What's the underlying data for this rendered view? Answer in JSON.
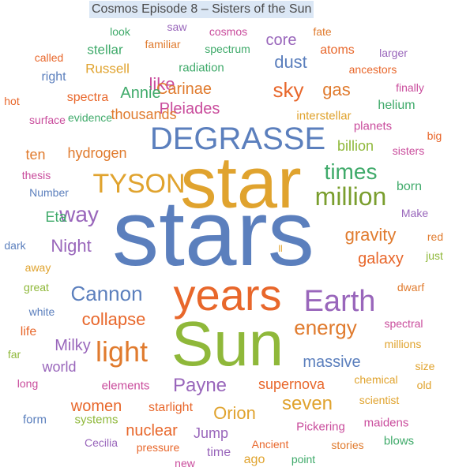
{
  "title": "Cosmos Episode 8 – Sisters of the Sun",
  "words": [
    {
      "text": "stars",
      "color": "#5b7fbd"
    },
    {
      "text": "star",
      "color": "#e0a32e"
    },
    {
      "text": "Sun",
      "color": "#8fb83a"
    },
    {
      "text": "years",
      "color": "#e8672b"
    },
    {
      "text": "DEGRASSE",
      "color": "#5b7fbd"
    },
    {
      "text": "TYSON",
      "color": "#e0a32e"
    },
    {
      "text": "Earth",
      "color": "#9966bb"
    },
    {
      "text": "light",
      "color": "#e07b2e"
    },
    {
      "text": "million",
      "color": "#7a9e2e"
    },
    {
      "text": "way",
      "color": "#9966bb"
    },
    {
      "text": "times",
      "color": "#3faa6a"
    },
    {
      "text": "Cannon",
      "color": "#5b7fbd"
    },
    {
      "text": "energy",
      "color": "#e07b2e"
    },
    {
      "text": "Payne",
      "color": "#9966bb"
    },
    {
      "text": "gravity",
      "color": "#e07b2e"
    },
    {
      "text": "galaxy",
      "color": "#e8672b"
    },
    {
      "text": "seven",
      "color": "#e0a32e"
    },
    {
      "text": "Orion",
      "color": "#e0a32e"
    },
    {
      "text": "like",
      "color": "#c94c9c"
    },
    {
      "text": "sky",
      "color": "#e8672b"
    },
    {
      "text": "gas",
      "color": "#e07b2e"
    },
    {
      "text": "Night",
      "color": "#9966bb"
    },
    {
      "text": "collapse",
      "color": "#e8672b"
    },
    {
      "text": "massive",
      "color": "#5b7fbd"
    },
    {
      "text": "Pleiades",
      "color": "#c94c9c"
    },
    {
      "text": "supernova",
      "color": "#e8672b"
    },
    {
      "text": "Carinae",
      "color": "#e07b2e"
    },
    {
      "text": "Annie",
      "color": "#3faa6a"
    },
    {
      "text": "dust",
      "color": "#5b7fbd"
    },
    {
      "text": "core",
      "color": "#9966bb"
    },
    {
      "text": "Milky",
      "color": "#9966bb"
    },
    {
      "text": "women",
      "color": "#e8672b"
    },
    {
      "text": "nuclear",
      "color": "#e8672b"
    },
    {
      "text": "world",
      "color": "#9966bb"
    },
    {
      "text": "billion",
      "color": "#8fb83a"
    },
    {
      "text": "Eta",
      "color": "#3faa6a"
    },
    {
      "text": "hydrogen",
      "color": "#e07b2e"
    },
    {
      "text": "thousands",
      "color": "#e07b2e"
    },
    {
      "text": "ten",
      "color": "#e07b2e"
    },
    {
      "text": "born",
      "color": "#3faa6a"
    },
    {
      "text": "Jump",
      "color": "#9966bb"
    },
    {
      "text": "starlight",
      "color": "#e8672b"
    },
    {
      "text": "time",
      "color": "#9966bb"
    },
    {
      "text": "ago",
      "color": "#e0a32e"
    },
    {
      "text": "life",
      "color": "#e8672b"
    },
    {
      "text": "Russell",
      "color": "#e0a32e"
    },
    {
      "text": "stellar",
      "color": "#3faa6a"
    },
    {
      "text": "radiation",
      "color": "#3faa6a"
    },
    {
      "text": "atoms",
      "color": "#e8672b"
    },
    {
      "text": "helium",
      "color": "#3faa6a"
    },
    {
      "text": "spectra",
      "color": "#e8672b"
    },
    {
      "text": "right",
      "color": "#5b7fbd"
    },
    {
      "text": "interstellar",
      "color": "#e0a32e"
    },
    {
      "text": "planets",
      "color": "#c94c9c"
    },
    {
      "text": "red",
      "color": "#e07b2e"
    },
    {
      "text": "just",
      "color": "#8fb83a"
    },
    {
      "text": "dark",
      "color": "#5b7fbd"
    },
    {
      "text": "white",
      "color": "#5b7fbd"
    },
    {
      "text": "dwarf",
      "color": "#e07b2e"
    },
    {
      "text": "spectral",
      "color": "#c94c9c"
    },
    {
      "text": "elements",
      "color": "#c94c9c"
    },
    {
      "text": "Ancient",
      "color": "#e8672b"
    },
    {
      "text": "pressure",
      "color": "#e8672b"
    },
    {
      "text": "Pickering",
      "color": "#c94c9c"
    },
    {
      "text": "maidens",
      "color": "#c94c9c"
    },
    {
      "text": "stories",
      "color": "#e07b2e"
    },
    {
      "text": "blows",
      "color": "#3faa6a"
    },
    {
      "text": "size",
      "color": "#e0a32e"
    },
    {
      "text": "old",
      "color": "#e0a32e"
    },
    {
      "text": "chemical",
      "color": "#e0a32e"
    },
    {
      "text": "scientist",
      "color": "#e0a32e"
    },
    {
      "text": "millions",
      "color": "#e0a32e"
    },
    {
      "text": "form",
      "color": "#5b7fbd"
    },
    {
      "text": "systems",
      "color": "#8fb83a"
    },
    {
      "text": "Cecilia",
      "color": "#9966bb"
    },
    {
      "text": "new",
      "color": "#c94c9c"
    },
    {
      "text": "point",
      "color": "#3faa6a"
    },
    {
      "text": "long",
      "color": "#c94c9c"
    },
    {
      "text": "far",
      "color": "#8fb83a"
    },
    {
      "text": "great",
      "color": "#8fb83a"
    },
    {
      "text": "away",
      "color": "#e0a32e"
    },
    {
      "text": "Number",
      "color": "#5b7fbd"
    },
    {
      "text": "thesis",
      "color": "#c94c9c"
    },
    {
      "text": "hot",
      "color": "#e8672b"
    },
    {
      "text": "surface",
      "color": "#c94c9c"
    },
    {
      "text": "evidence",
      "color": "#3faa6a"
    },
    {
      "text": "called",
      "color": "#e8672b"
    },
    {
      "text": "look",
      "color": "#3faa6a"
    },
    {
      "text": "familiar",
      "color": "#e07b2e"
    },
    {
      "text": "saw",
      "color": "#9966bb"
    },
    {
      "text": "cosmos",
      "color": "#c94c9c"
    },
    {
      "text": "spectrum",
      "color": "#3faa6a"
    },
    {
      "text": "fate",
      "color": "#e07b2e"
    },
    {
      "text": "larger",
      "color": "#9966bb"
    },
    {
      "text": "ancestors",
      "color": "#e8672b"
    },
    {
      "text": "finally",
      "color": "#c94c9c"
    },
    {
      "text": "big",
      "color": "#e8672b"
    },
    {
      "text": "sisters",
      "color": "#c94c9c"
    },
    {
      "text": "Make",
      "color": "#9966bb"
    },
    {
      "text": "ll",
      "color": "#e0a32e"
    }
  ]
}
